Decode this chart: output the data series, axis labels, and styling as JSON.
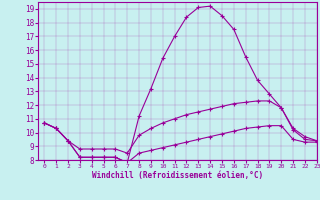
{
  "background_color": "#c8f0f0",
  "line_color": "#990099",
  "xlim": [
    -0.5,
    23
  ],
  "ylim": [
    8,
    19.5
  ],
  "xticks": [
    0,
    1,
    2,
    3,
    4,
    5,
    6,
    7,
    8,
    9,
    10,
    11,
    12,
    13,
    14,
    15,
    16,
    17,
    18,
    19,
    20,
    21,
    22,
    23
  ],
  "yticks": [
    8,
    9,
    10,
    11,
    12,
    13,
    14,
    15,
    16,
    17,
    18,
    19
  ],
  "xlabel": "Windchill (Refroidissement éolien,°C)",
  "line1_x": [
    0,
    1,
    2,
    3,
    4,
    5,
    6,
    7,
    8,
    9,
    10,
    11,
    12,
    13,
    14,
    15,
    16,
    17,
    18,
    19,
    20,
    21,
    22,
    23
  ],
  "line1_y": [
    10.7,
    10.3,
    9.4,
    8.2,
    8.2,
    8.2,
    8.2,
    7.8,
    8.5,
    8.7,
    8.9,
    9.1,
    9.3,
    9.5,
    9.7,
    9.9,
    10.1,
    10.3,
    10.4,
    10.5,
    10.5,
    9.5,
    9.3,
    9.3
  ],
  "line2_x": [
    0,
    1,
    2,
    3,
    4,
    5,
    6,
    7,
    8,
    9,
    10,
    11,
    12,
    13,
    14,
    15,
    16,
    17,
    18,
    19,
    20,
    21,
    22,
    23
  ],
  "line2_y": [
    10.7,
    10.3,
    9.4,
    8.8,
    8.8,
    8.8,
    8.8,
    8.5,
    9.8,
    10.3,
    10.7,
    11.0,
    11.3,
    11.5,
    11.7,
    11.9,
    12.1,
    12.2,
    12.3,
    12.3,
    11.8,
    10.3,
    9.7,
    9.4
  ],
  "line3_x": [
    0,
    1,
    2,
    3,
    4,
    5,
    6,
    7,
    8,
    9,
    10,
    11,
    12,
    13,
    14,
    15,
    16,
    17,
    18,
    19,
    20,
    21,
    22,
    23
  ],
  "line3_y": [
    10.7,
    10.3,
    9.4,
    8.2,
    8.2,
    8.2,
    8.2,
    7.8,
    11.2,
    13.2,
    15.4,
    17.0,
    18.4,
    19.1,
    19.2,
    18.5,
    17.5,
    15.5,
    13.8,
    12.8,
    11.8,
    10.2,
    9.5,
    9.4
  ]
}
